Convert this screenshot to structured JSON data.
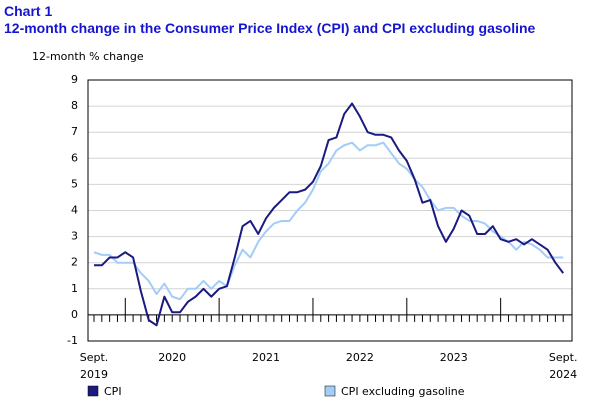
{
  "chart_data": {
    "type": "line",
    "title": "Chart 1",
    "subtitle": "12-month change in the Consumer Price Index (CPI) and CPI excluding gasoline",
    "y_label": "12-month % change",
    "categories": [
      "Sept. 2019",
      null,
      null,
      null,
      null,
      null,
      null,
      null,
      null,
      null,
      "2020",
      null,
      null,
      null,
      null,
      null,
      null,
      null,
      null,
      null,
      null,
      null,
      "2021",
      null,
      null,
      null,
      null,
      null,
      null,
      null,
      null,
      null,
      null,
      null,
      "2022",
      null,
      null,
      null,
      null,
      null,
      null,
      null,
      null,
      null,
      null,
      null,
      "2023",
      null,
      null,
      null,
      null,
      null,
      null,
      null,
      null,
      null,
      null,
      null,
      null,
      null,
      "Sept. 2024"
    ],
    "series": [
      {
        "name": "CPI",
        "color": "#1a1a80",
        "values": [
          1.9,
          1.9,
          2.2,
          2.2,
          2.4,
          2.2,
          0.9,
          -0.2,
          -0.4,
          0.7,
          0.1,
          0.1,
          0.5,
          0.7,
          1.0,
          0.7,
          1.0,
          1.1,
          2.2,
          3.4,
          3.6,
          3.1,
          3.7,
          4.1,
          4.4,
          4.7,
          4.7,
          4.8,
          5.1,
          5.7,
          6.7,
          6.8,
          7.7,
          8.1,
          7.6,
          7.0,
          6.9,
          6.9,
          6.8,
          6.3,
          5.9,
          5.2,
          4.3,
          4.4,
          3.4,
          2.8,
          3.3,
          4.0,
          3.8,
          3.1,
          3.1,
          3.4,
          2.9,
          2.8,
          2.9,
          2.7,
          2.9,
          2.7,
          2.5,
          2.0,
          1.6
        ]
      },
      {
        "name": "CPI excluding gasoline",
        "color": "#a3cdf7",
        "values": [
          2.4,
          2.3,
          2.3,
          2.0,
          2.0,
          2.0,
          1.6,
          1.3,
          0.8,
          1.2,
          0.7,
          0.6,
          1.0,
          1.0,
          1.3,
          1.0,
          1.3,
          1.1,
          1.9,
          2.5,
          2.2,
          2.8,
          3.2,
          3.5,
          3.6,
          3.6,
          4.0,
          4.3,
          4.8,
          5.5,
          5.8,
          6.3,
          6.5,
          6.6,
          6.3,
          6.5,
          6.5,
          6.6,
          6.2,
          5.8,
          5.6,
          5.2,
          4.9,
          4.4,
          4.0,
          4.1,
          4.1,
          3.8,
          3.6,
          3.6,
          3.5,
          3.2,
          3.0,
          2.8,
          2.5,
          2.8,
          2.7,
          2.5,
          2.2,
          2.2,
          2.2
        ]
      }
    ],
    "ylim": [
      -1,
      9
    ],
    "yticks": [
      -1,
      0,
      1,
      2,
      3,
      4,
      5,
      6,
      7,
      8,
      9
    ],
    "grid": true
  }
}
